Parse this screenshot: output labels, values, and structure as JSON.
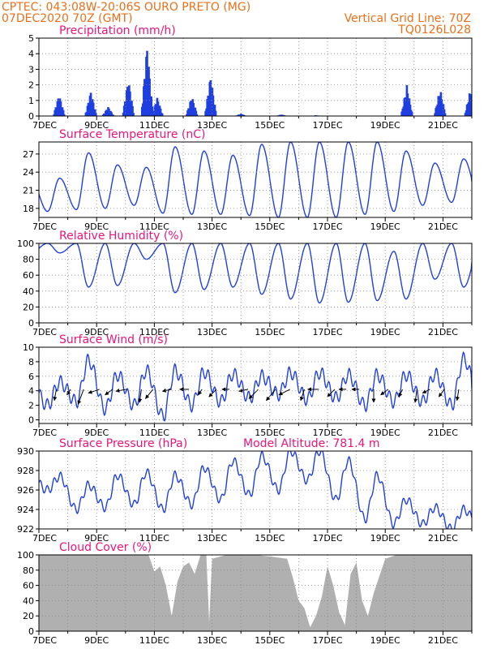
{
  "header": {
    "line1": "CPTEC:   043:08W-20:06S   OURO PRETO (MG)",
    "line2": "07DEC2020 70Z (GMT)",
    "right1": "Vertical Grid Line: 70Z",
    "right2": "TQ0126L028"
  },
  "colors": {
    "header": "#e8701a",
    "title": "#e8157a",
    "series": "#1f3fe0",
    "cloud": "#b0b0b0",
    "arrow": "#000000",
    "grid": "#888888"
  },
  "x_axis": {
    "range": [
      "2020-12-07T00",
      "2020-12-22T00"
    ],
    "tick_labels": [
      "7DEC",
      "9DEC",
      "11DEC",
      "13DEC",
      "15DEC",
      "17DEC",
      "19DEC",
      "21DEC"
    ],
    "tick_days": [
      0,
      2,
      4,
      6,
      8,
      10,
      12,
      14
    ],
    "grid": "vertical dotted line every 1 day, horizontal dotted line at each y tick"
  },
  "chart_data": [
    {
      "type": "bar",
      "title": "Precipitation (mm/h)",
      "ylim": [
        0,
        5
      ],
      "yticks": [
        0,
        1,
        2,
        3,
        4,
        5
      ],
      "x_unit": "days since 7DEC2020 00Z",
      "events": [
        {
          "day": 0.7,
          "peak": 1.4
        },
        {
          "day": 1.8,
          "peak": 1.6
        },
        {
          "day": 2.4,
          "peak": 0.6
        },
        {
          "day": 3.1,
          "peak": 2.4
        },
        {
          "day": 3.75,
          "peak": 4.6
        },
        {
          "day": 4.1,
          "peak": 1.2
        },
        {
          "day": 5.3,
          "peak": 1.3
        },
        {
          "day": 5.95,
          "peak": 2.6
        },
        {
          "day": 7.0,
          "peak": 0.15
        },
        {
          "day": 8.4,
          "peak": 0.1
        },
        {
          "day": 9.6,
          "peak": 0.05
        },
        {
          "day": 12.75,
          "peak": 2.0
        },
        {
          "day": 13.9,
          "peak": 1.8
        },
        {
          "day": 14.95,
          "peak": 1.7
        }
      ]
    },
    {
      "type": "line",
      "title": "Surface Temperature (nC)",
      "ylim": [
        16.5,
        29
      ],
      "yticks": [
        18,
        21,
        24,
        27
      ],
      "day_starts_at": 0,
      "daily": [
        {
          "min": 17.5,
          "max": 23.0
        },
        {
          "min": 17.8,
          "max": 27.2
        },
        {
          "min": 18.0,
          "max": 25.2
        },
        {
          "min": 18.5,
          "max": 24.8
        },
        {
          "min": 17.2,
          "max": 28.2
        },
        {
          "min": 17.0,
          "max": 27.5
        },
        {
          "min": 17.0,
          "max": 26.8
        },
        {
          "min": 16.8,
          "max": 28.6
        },
        {
          "min": 16.5,
          "max": 29.0
        },
        {
          "min": 16.5,
          "max": 29.0
        },
        {
          "min": 16.5,
          "max": 29.0
        },
        {
          "min": 17.0,
          "max": 29.0
        },
        {
          "min": 17.5,
          "max": 27.5
        },
        {
          "min": 18.5,
          "max": 25.5
        },
        {
          "min": 19.0,
          "max": 26.2
        }
      ]
    },
    {
      "type": "line",
      "title": "Relative Humidity (%)",
      "ylim": [
        0,
        100
      ],
      "yticks": [
        0,
        20,
        40,
        60,
        80,
        100
      ],
      "daily": [
        {
          "min": 88,
          "max": 100
        },
        {
          "min": 45,
          "max": 100
        },
        {
          "min": 47,
          "max": 100
        },
        {
          "min": 80,
          "max": 100
        },
        {
          "min": 38,
          "max": 100
        },
        {
          "min": 42,
          "max": 100
        },
        {
          "min": 45,
          "max": 100
        },
        {
          "min": 36,
          "max": 100
        },
        {
          "min": 30,
          "max": 100
        },
        {
          "min": 25,
          "max": 100
        },
        {
          "min": 26,
          "max": 100
        },
        {
          "min": 28,
          "max": 100
        },
        {
          "min": 30,
          "max": 90
        },
        {
          "min": 55,
          "max": 100
        },
        {
          "min": 45,
          "max": 100
        }
      ]
    },
    {
      "type": "line",
      "title": "Surface Wind (m/s)",
      "ylim": [
        -0.5,
        10
      ],
      "yticks": [
        0,
        2,
        4,
        6,
        8,
        10
      ],
      "daily": [
        {
          "min": 2.0,
          "max": 5.2
        },
        {
          "min": 2.5,
          "max": 8.2
        },
        {
          "min": 1.5,
          "max": 6.2
        },
        {
          "min": 2.0,
          "max": 6.8
        },
        {
          "min": 0.5,
          "max": 6.8
        },
        {
          "min": 2.0,
          "max": 6.6
        },
        {
          "min": 2.5,
          "max": 6.3
        },
        {
          "min": 3.0,
          "max": 6.0
        },
        {
          "min": 3.5,
          "max": 6.5
        },
        {
          "min": 2.8,
          "max": 6.5
        },
        {
          "min": 3.0,
          "max": 6.2
        },
        {
          "min": 2.0,
          "max": 6.2
        },
        {
          "min": 2.5,
          "max": 6.2
        },
        {
          "min": 2.5,
          "max": 6.3
        },
        {
          "min": 2.0,
          "max": 8.4
        }
      ],
      "wind_arrows": [
        {
          "day": 0.6,
          "u": -1,
          "v": -6
        },
        {
          "day": 1.1,
          "u": -2,
          "v": -3
        },
        {
          "day": 1.55,
          "u": -3,
          "v": -8
        },
        {
          "day": 2.1,
          "u": -6,
          "v": -2
        },
        {
          "day": 2.55,
          "u": -4,
          "v": -3
        },
        {
          "day": 3.05,
          "u": -6,
          "v": -1
        },
        {
          "day": 3.55,
          "u": -1,
          "v": -7
        },
        {
          "day": 3.95,
          "u": -4,
          "v": -5
        },
        {
          "day": 4.6,
          "u": -5,
          "v": -1
        },
        {
          "day": 5.2,
          "u": -5,
          "v": 0
        },
        {
          "day": 5.65,
          "u": -2,
          "v": -3
        },
        {
          "day": 6.15,
          "u": -4,
          "v": -4
        },
        {
          "day": 6.6,
          "u": -4,
          "v": 0
        },
        {
          "day": 7.25,
          "u": -5,
          "v": -1
        },
        {
          "day": 7.6,
          "u": -5,
          "v": -5
        },
        {
          "day": 8.2,
          "u": -5,
          "v": -6
        },
        {
          "day": 8.7,
          "u": -6,
          "v": -3
        },
        {
          "day": 9.2,
          "u": -2,
          "v": -6
        },
        {
          "day": 9.7,
          "u": -6,
          "v": 0
        },
        {
          "day": 10.25,
          "u": -4,
          "v": -4
        },
        {
          "day": 10.65,
          "u": -4,
          "v": 0
        },
        {
          "day": 11.1,
          "u": -4,
          "v": 0
        },
        {
          "day": 11.6,
          "u": 0,
          "v": -7
        },
        {
          "day": 12.1,
          "u": -4,
          "v": -3
        },
        {
          "day": 12.6,
          "u": -2,
          "v": -4
        },
        {
          "day": 13.1,
          "u": -1,
          "v": -7
        },
        {
          "day": 13.55,
          "u": -4,
          "v": -2
        },
        {
          "day": 14.05,
          "u": -3,
          "v": -4
        },
        {
          "day": 14.55,
          "u": -1,
          "v": -6
        }
      ]
    },
    {
      "type": "line",
      "title": "Surface Pressure (hPa)",
      "annotation": "Model Altitude: 781.4  m",
      "ylim": [
        922,
        930
      ],
      "yticks": [
        922,
        924,
        926,
        928,
        930
      ],
      "daily": [
        {
          "min": 926.0,
          "max": 927.4
        },
        {
          "min": 924.0,
          "max": 926.5
        },
        {
          "min": 924.2,
          "max": 927.5
        },
        {
          "min": 924.5,
          "max": 927.8
        },
        {
          "min": 924.0,
          "max": 927.5
        },
        {
          "min": 924.5,
          "max": 928.3
        },
        {
          "min": 925.0,
          "max": 929.0
        },
        {
          "min": 925.5,
          "max": 929.5
        },
        {
          "min": 926.0,
          "max": 930.0
        },
        {
          "min": 927.0,
          "max": 930.0
        },
        {
          "min": 925.0,
          "max": 929.0
        },
        {
          "min": 923.0,
          "max": 927.5
        },
        {
          "min": 922.5,
          "max": 925.0
        },
        {
          "min": 922.5,
          "max": 924.2
        },
        {
          "min": 922.0,
          "max": 924.0
        }
      ]
    },
    {
      "type": "area",
      "title": "Cloud Cover (%)",
      "ylim": [
        0,
        100
      ],
      "yticks": [
        0,
        20,
        40,
        60,
        80,
        100
      ],
      "x_days": [
        0,
        3.5,
        3.8,
        4.0,
        4.2,
        4.4,
        4.5,
        4.6,
        4.8,
        5.0,
        5.2,
        5.4,
        5.6,
        5.8,
        5.9,
        6.0,
        6.5,
        7.5,
        8.0,
        8.6,
        8.8,
        9.0,
        9.2,
        9.4,
        9.6,
        9.8,
        10.0,
        10.2,
        10.4,
        10.6,
        10.8,
        11.0,
        11.2,
        11.4,
        11.6,
        12.0,
        12.4,
        13.0,
        14.0,
        15.0
      ],
      "values": [
        100,
        100,
        100,
        78,
        85,
        60,
        40,
        20,
        65,
        85,
        90,
        75,
        100,
        100,
        12,
        95,
        100,
        100,
        98,
        95,
        70,
        40,
        30,
        5,
        20,
        45,
        85,
        60,
        25,
        8,
        75,
        90,
        40,
        20,
        50,
        95,
        100,
        100,
        100,
        100
      ]
    }
  ]
}
